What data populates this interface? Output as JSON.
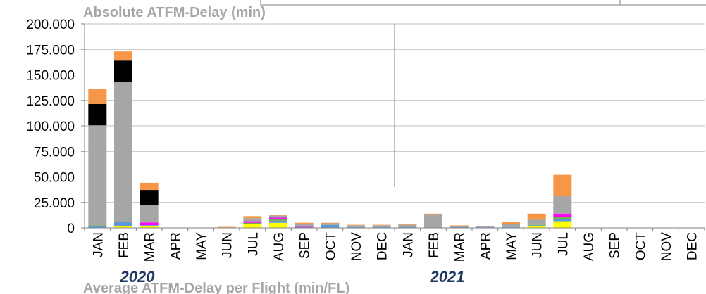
{
  "chart_data": {
    "type": "bar",
    "stacked": true,
    "title": "Absolute ATFM-Delay (min)",
    "next_title": "Average ATFM-Delay per Flight (min/FL)",
    "years": [
      {
        "label": "2020",
        "start": 0,
        "end": 12
      },
      {
        "label": "2021",
        "start": 12,
        "end": 24
      }
    ],
    "categories": [
      "JAN",
      "FEB",
      "MAR",
      "APR",
      "MAY",
      "JUN",
      "JUL",
      "AUG",
      "SEP",
      "OCT",
      "NOV",
      "DEC",
      "JAN",
      "FEB",
      "MAR",
      "APR",
      "MAY",
      "JUN",
      "JUL",
      "AUG",
      "SEP",
      "OCT",
      "NOV",
      "DEC"
    ],
    "y_ticks": [
      "0",
      "25.000",
      "50.000",
      "75.000",
      "100.000",
      "125.000",
      "150.000",
      "175.000",
      "200.000"
    ],
    "ylim": [
      0,
      200000
    ],
    "series": [
      {
        "color": "#ffff00",
        "values": [
          0,
          2000,
          1500,
          0,
          0,
          0,
          4000,
          5000,
          300,
          300,
          200,
          300,
          200,
          0,
          200,
          200,
          400,
          2000,
          6500,
          0,
          0,
          0,
          0,
          0
        ]
      },
      {
        "color": "#5b9bd5",
        "values": [
          2000,
          4000,
          1200,
          0,
          0,
          0,
          0,
          2000,
          500,
          2500,
          600,
          600,
          500,
          300,
          500,
          400,
          500,
          500,
          2500,
          0,
          0,
          0,
          0,
          0
        ]
      },
      {
        "color": "#70ad47",
        "values": [
          500,
          0,
          0,
          0,
          0,
          0,
          1000,
          2000,
          0,
          0,
          0,
          0,
          0,
          0,
          0,
          0,
          0,
          500,
          1500,
          0,
          0,
          0,
          0,
          0
        ]
      },
      {
        "color": "#ff00ff",
        "values": [
          0,
          0,
          2500,
          0,
          0,
          0,
          1500,
          1000,
          200,
          0,
          0,
          0,
          0,
          0,
          0,
          0,
          0,
          0,
          3500,
          0,
          0,
          0,
          0,
          0
        ]
      },
      {
        "color": "#a6a6a6",
        "values": [
          98000,
          137000,
          17000,
          0,
          0,
          500,
          3000,
          2000,
          3000,
          1700,
          1700,
          1600,
          2300,
          13300,
          1300,
          900,
          3100,
          5000,
          17000,
          0,
          0,
          0,
          0,
          0
        ]
      },
      {
        "color": "#000000",
        "values": [
          21000,
          21000,
          15000,
          0,
          0,
          0,
          0,
          0,
          0,
          0,
          0,
          0,
          0,
          0,
          0,
          0,
          0,
          0,
          0,
          0,
          0,
          0,
          0,
          0
        ]
      },
      {
        "color": "#f79646",
        "values": [
          15000,
          9000,
          7000,
          0,
          0,
          500,
          2000,
          1000,
          1000,
          500,
          500,
          500,
          500,
          300,
          500,
          500,
          2000,
          6000,
          21000,
          0,
          0,
          0,
          0,
          0
        ]
      }
    ]
  }
}
